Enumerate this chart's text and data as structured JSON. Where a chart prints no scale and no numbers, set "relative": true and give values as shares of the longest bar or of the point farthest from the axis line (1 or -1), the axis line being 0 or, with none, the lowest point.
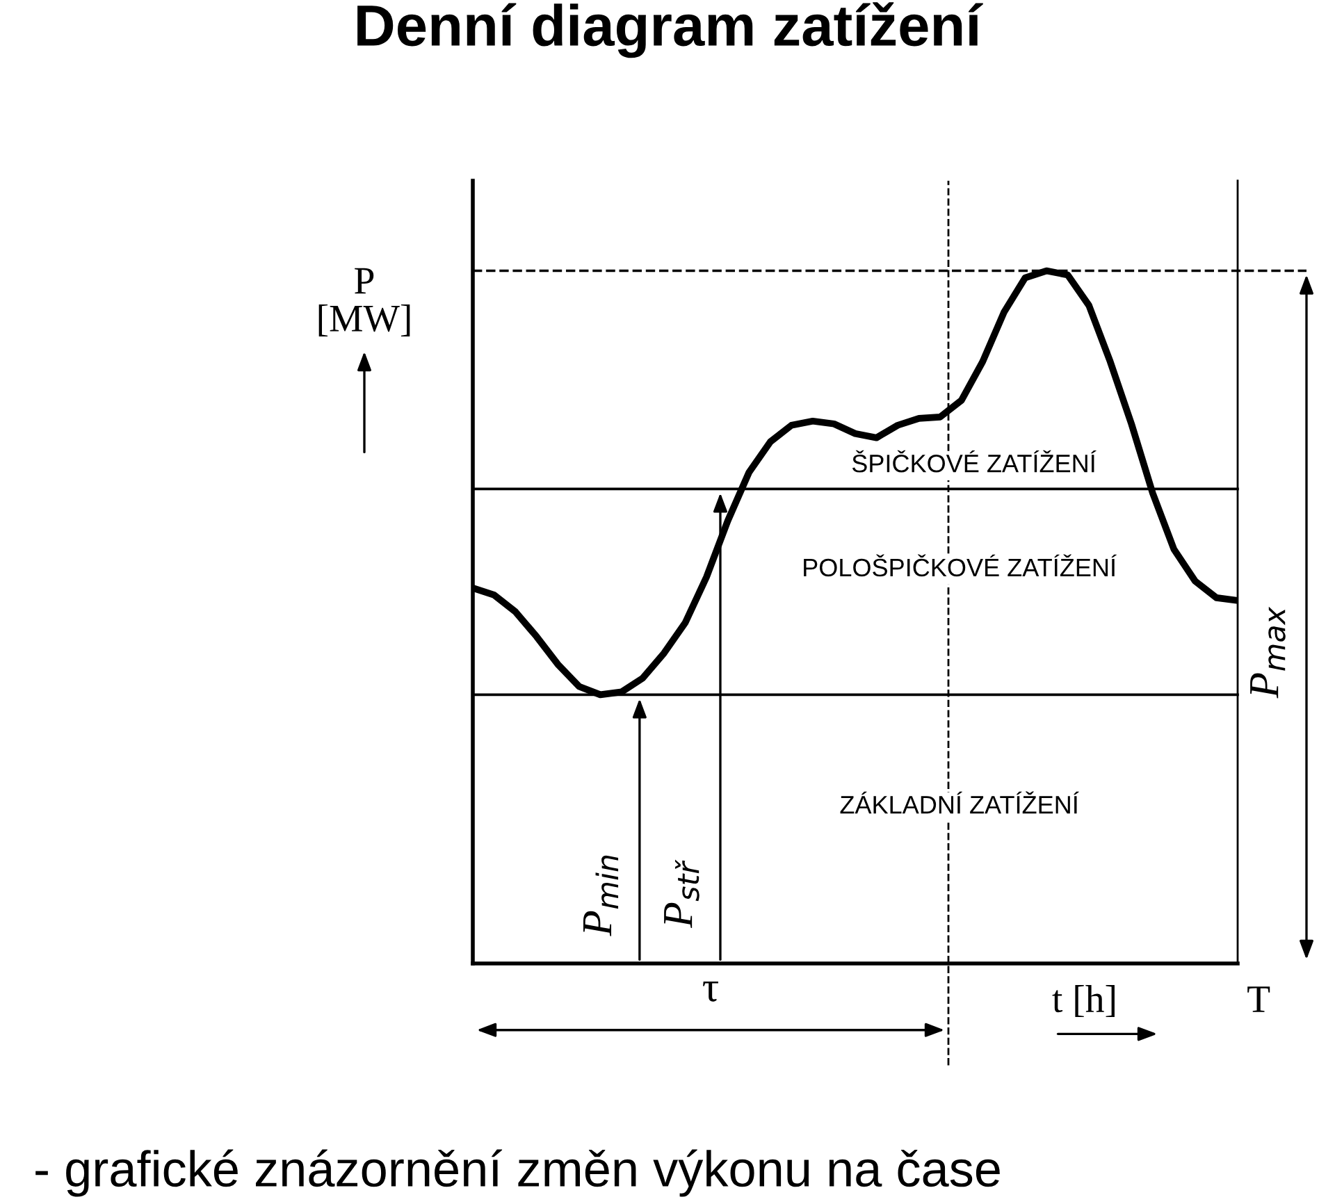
{
  "chart_data": {
    "type": "line",
    "title": "Denní diagram zatížení",
    "subtitle": "- grafické znázornění změn výkonu na čase",
    "xlabel": "t [h]",
    "ylabel": "P [MW]",
    "relative": true,
    "legend": false,
    "grid": false,
    "marker": "none",
    "line_style": "solid",
    "categories": [
      null,
      null,
      null,
      null,
      null,
      null,
      null,
      null,
      null,
      null,
      null,
      null,
      null,
      null,
      null,
      null,
      null,
      null,
      null,
      null,
      null,
      null,
      null,
      null,
      null,
      null,
      null,
      null,
      null,
      null,
      null,
      null,
      null,
      null,
      null,
      null,
      null
    ],
    "series": [
      {
        "color": "#000000",
        "values": [
          0.542,
          0.532,
          0.508,
          0.472,
          0.432,
          0.4,
          0.388,
          0.392,
          0.412,
          0.448,
          0.492,
          0.558,
          0.639,
          0.709,
          0.753,
          0.777,
          0.783,
          0.779,
          0.765,
          0.759,
          0.777,
          0.787,
          0.789,
          0.813,
          0.869,
          0.94,
          0.99,
          1.0,
          0.994,
          0.95,
          0.869,
          0.779,
          0.679,
          0.598,
          0.552,
          0.528,
          0.524
        ]
      }
    ],
    "ref_lines": [
      {
        "axis": "y",
        "value": 0.388,
        "label": "P$_{min}$",
        "color": "#000000",
        "line_style": "solid"
      },
      {
        "axis": "y",
        "value": 0.685,
        "label": "P$_{stř}$",
        "color": "#000000",
        "line_style": "solid"
      },
      {
        "axis": "y",
        "value": 1.0,
        "color": "#000000",
        "line_style": "dashed"
      }
    ],
    "annotations": [
      "ŠPIČKOVÉ ZATÍŽENÍ",
      "POLOŠPIČKOVÉ ZATÍŽENÍ",
      "ZÁKLADNÍ ZATÍŽENÍ",
      "τ",
      "T",
      "P$_{max}$"
    ]
  }
}
